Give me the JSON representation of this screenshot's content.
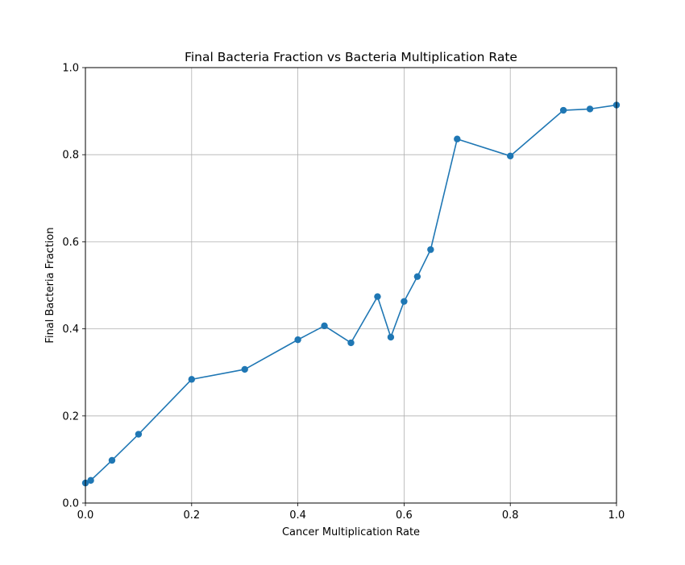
{
  "chart_data": {
    "type": "line",
    "title": "Final Bacteria Fraction vs Bacteria Multiplication Rate",
    "xlabel": "Cancer Multiplication Rate",
    "ylabel": "Final Bacteria Fraction",
    "xlim": [
      0.0,
      1.0
    ],
    "ylim": [
      0.0,
      1.0
    ],
    "grid": true,
    "marker": "circle",
    "colors": {
      "series": "#1f77b4",
      "grid": "#b0b0b0",
      "axis": "#000000"
    },
    "x_ticks": [
      "0.0",
      "0.2",
      "0.4",
      "0.6",
      "0.8",
      "1.0"
    ],
    "y_ticks": [
      "0.0",
      "0.2",
      "0.4",
      "0.6",
      "0.8",
      "1.0"
    ],
    "series": [
      {
        "x": [
          0.0,
          0.01,
          0.05,
          0.1,
          0.2,
          0.3,
          0.4,
          0.45,
          0.5,
          0.55,
          0.575,
          0.6,
          0.625,
          0.65,
          0.7,
          0.8,
          0.9,
          0.95,
          1.0
        ],
        "y": [
          0.046,
          0.052,
          0.098,
          0.158,
          0.284,
          0.307,
          0.375,
          0.407,
          0.368,
          0.474,
          0.381,
          0.463,
          0.52,
          0.582,
          0.836,
          0.797,
          0.902,
          0.905,
          0.914
        ]
      }
    ]
  }
}
